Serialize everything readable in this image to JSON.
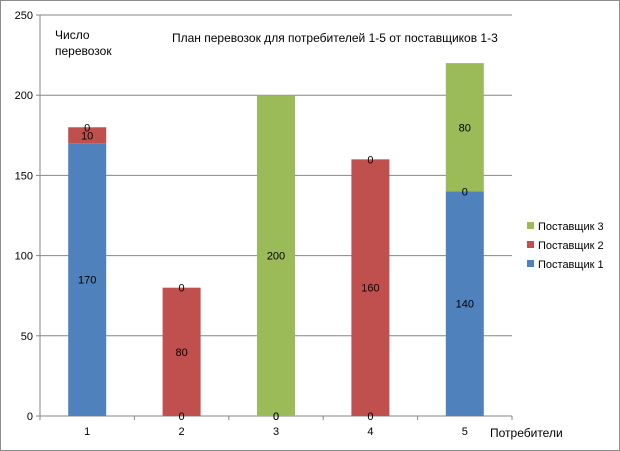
{
  "chart_data": {
    "type": "bar",
    "stacked": true,
    "title": "План перевозок для потребителей 1-5 от поставщиков 1-3",
    "ylabel_line1": "Число",
    "ylabel_line2": "перевозок",
    "xlabel": "Потребители",
    "categories": [
      "1",
      "2",
      "3",
      "4",
      "5"
    ],
    "ylim": [
      0,
      250
    ],
    "yticks": [
      0,
      50,
      100,
      150,
      200,
      250
    ],
    "grid": true,
    "legend_position": "right",
    "series": [
      {
        "name": "Поставщик 1",
        "color": "#4f81bd",
        "values": [
          170,
          0,
          0,
          0,
          140
        ]
      },
      {
        "name": "Поставщик 2",
        "color": "#c0504d",
        "values": [
          10,
          80,
          0,
          160,
          0
        ]
      },
      {
        "name": "Поставщик 3",
        "color": "#9bbb59",
        "values": [
          0,
          0,
          200,
          0,
          80
        ]
      }
    ]
  }
}
